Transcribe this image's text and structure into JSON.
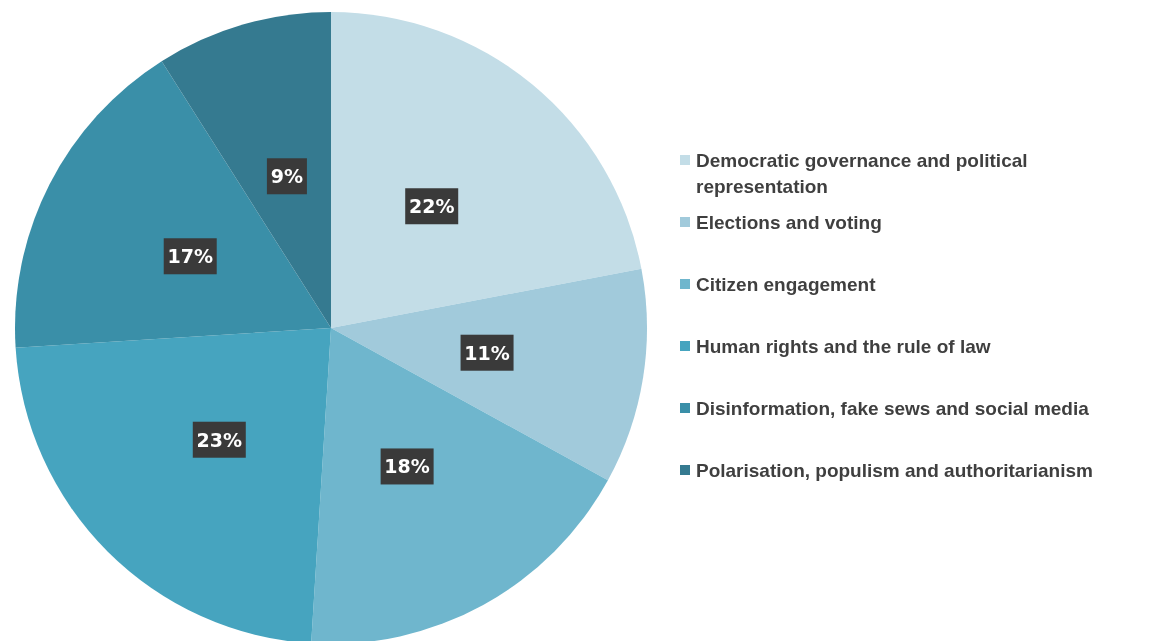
{
  "chart_data": {
    "type": "pie",
    "categories": [
      "Democratic governance and political representation",
      "Elections and voting",
      "Citizen engagement",
      "Human rights and the rule of law",
      "Disinformation, fake sews and social media",
      "Polarisation, populism and authoritarianism"
    ],
    "values": [
      22,
      11,
      18,
      23,
      17,
      9
    ],
    "value_labels": [
      "22%",
      "11%",
      "18%",
      "23%",
      "17%",
      "9%"
    ],
    "colors": [
      "#c3dde7",
      "#a1cadb",
      "#6fb6cd",
      "#46a4bf",
      "#3a8fa8",
      "#357a90"
    ],
    "legend": "right"
  }
}
